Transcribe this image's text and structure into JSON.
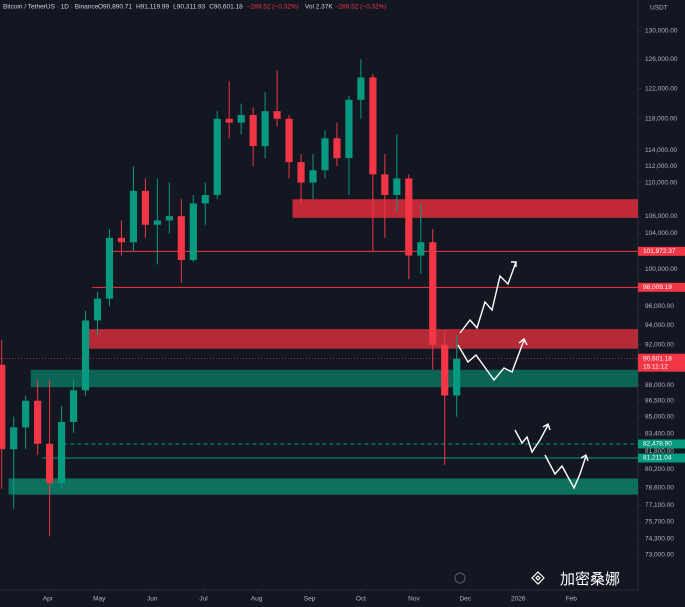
{
  "chart_data": {
    "type": "candlestick",
    "title": "Bitcoin / TetherUS · 1D · Binance",
    "ohlc": [
      "O90,890.71",
      "H91,119.99",
      "L90,311.93",
      "C90,601.18",
      "−289.52 (−0.32%)"
    ],
    "volume": "Vol 2.37K",
    "volume_change": "−289.52 (−0.32%)",
    "currency": "USDT",
    "countdown": "15:11:12",
    "watermark": "加密桑娜",
    "log_scale": true,
    "up_color": "#089981",
    "down_color": "#f23645",
    "x": [
      0,
      7,
      14,
      21,
      28,
      35,
      42,
      49,
      56,
      63,
      70,
      77,
      84,
      91,
      98,
      105,
      112,
      119,
      126,
      133,
      140,
      147,
      154,
      161,
      168,
      175,
      182,
      189,
      196,
      203,
      210,
      217,
      224,
      231,
      238,
      245,
      252,
      259,
      266
    ],
    "open": [
      90000,
      82000,
      84000,
      86500,
      82500,
      79000,
      84500,
      87500,
      94500,
      96800,
      103500,
      103000,
      109000,
      105000,
      105500,
      106000,
      101000,
      107500,
      108500,
      118000,
      117500,
      118500,
      114500,
      119000,
      118000,
      112500,
      110000,
      111500,
      115500,
      113000,
      120500,
      123500,
      111000,
      108500,
      110500,
      101500,
      103000,
      92000,
      87000
    ],
    "high": [
      92500,
      85000,
      87000,
      88500,
      88500,
      86000,
      88500,
      95500,
      97500,
      104500,
      105500,
      112000,
      110500,
      110500,
      110000,
      108000,
      108500,
      110000,
      119000,
      123000,
      120000,
      119500,
      121500,
      124500,
      118500,
      113500,
      113500,
      116500,
      117500,
      121000,
      126000,
      124000,
      113500,
      116000,
      111000,
      107500,
      104500,
      93500,
      93000
    ],
    "low": [
      78500,
      76800,
      82000,
      81500,
      74500,
      78500,
      83500,
      87000,
      93000,
      96000,
      101500,
      102000,
      103500,
      100500,
      104000,
      98500,
      100800,
      105000,
      108000,
      115500,
      116000,
      112000,
      113000,
      117000,
      110500,
      107500,
      108000,
      110500,
      112000,
      108500,
      118000,
      102000,
      103500,
      106500,
      98900,
      99500,
      89500,
      80600,
      85000
    ],
    "close": [
      82000,
      84000,
      86500,
      82500,
      79000,
      84500,
      87500,
      94500,
      96800,
      103500,
      103000,
      109000,
      105000,
      105500,
      106000,
      101000,
      107500,
      108500,
      118000,
      117500,
      118500,
      114500,
      119000,
      118000,
      112500,
      110000,
      111500,
      115500,
      113000,
      120500,
      123500,
      111000,
      108500,
      110500,
      101500,
      103000,
      92000,
      87000,
      90601.18
    ],
    "xlim": [
      -1,
      372
    ],
    "xticks": [
      {
        "value": 27,
        "label": "Apr"
      },
      {
        "value": 57,
        "label": "May"
      },
      {
        "value": 88,
        "label": "Jun"
      },
      {
        "value": 118,
        "label": "Jul"
      },
      {
        "value": 149,
        "label": "Aug"
      },
      {
        "value": 180,
        "label": "Sep"
      },
      {
        "value": 210,
        "label": "Oct"
      },
      {
        "value": 241,
        "label": "Nov"
      },
      {
        "value": 271,
        "label": "Dec"
      },
      {
        "value": 302,
        "label": "2026"
      },
      {
        "value": 333,
        "label": "Feb"
      }
    ],
    "ylim": [
      71000,
      134500
    ],
    "yticks": [
      {
        "value": 130000,
        "label": "130,000.00"
      },
      {
        "value": 126000,
        "label": "126,000.00"
      },
      {
        "value": 122000,
        "label": "122,000.00"
      },
      {
        "value": 118000,
        "label": "118,000.00"
      },
      {
        "value": 114000,
        "label": "114,000.00"
      },
      {
        "value": 112000,
        "label": "112,000.00"
      },
      {
        "value": 110000,
        "label": "110,000.00"
      },
      {
        "value": 106000,
        "label": "106,000.00"
      },
      {
        "value": 104000,
        "label": "104,000.00"
      },
      {
        "value": 100000,
        "label": "100,000.00"
      },
      {
        "value": 96000,
        "label": "96,000.00"
      },
      {
        "value": 94000,
        "label": "94,000.00"
      },
      {
        "value": 92000,
        "label": "92,000.00"
      },
      {
        "value": 88000,
        "label": "88,000.00"
      },
      {
        "value": 86500,
        "label": "86,500.00"
      },
      {
        "value": 85000,
        "label": "85,000.00"
      },
      {
        "value": 83400,
        "label": "83,400.00"
      },
      {
        "value": 81800,
        "label": "81,800.00"
      },
      {
        "value": 80200,
        "label": "80,200.00"
      },
      {
        "value": 78600,
        "label": "78,600.00"
      },
      {
        "value": 77100,
        "label": "77,100.00"
      },
      {
        "value": 75700,
        "label": "75,700.00"
      },
      {
        "value": 74300,
        "label": "74,300.00"
      },
      {
        "value": 73000,
        "label": "73,000.00"
      }
    ],
    "last_price": {
      "value": 90601.18,
      "label": "90,601.18"
    },
    "levels": [
      {
        "value": 101972.37,
        "label": "101,972.37",
        "color": "#f23645",
        "start": 65,
        "dashed": false
      },
      {
        "value": 98009.19,
        "label": "98,009.19",
        "color": "#f23645",
        "start": 53,
        "dashed": false
      },
      {
        "value": 82478.9,
        "label": "82,478.90",
        "color": "#089981",
        "start": 36,
        "dashed": true
      },
      {
        "value": 81211.04,
        "label": "81,211.04",
        "color": "#089981",
        "start": 24,
        "dashed": false
      }
    ],
    "zones": [
      {
        "low": 105800,
        "high": 108000,
        "start": 170,
        "color": "#d02b38"
      },
      {
        "low": 91600,
        "high": 93600,
        "start": 50,
        "color": "#c22c3a"
      },
      {
        "low": 87800,
        "high": 89500,
        "start": 17,
        "color": "#0c6b5b"
      },
      {
        "low": 78000,
        "high": 79400,
        "start": 4,
        "color": "#0e7a66"
      }
    ]
  }
}
